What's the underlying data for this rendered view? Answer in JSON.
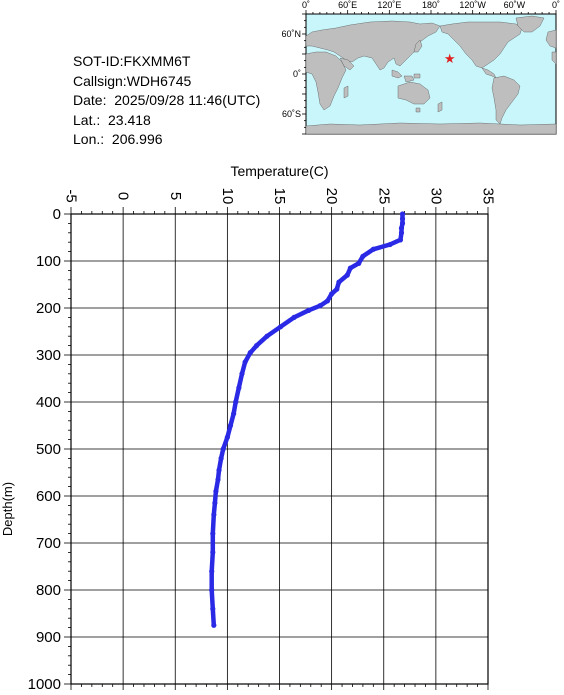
{
  "info": {
    "sot_id": "SOT-ID:FKXMM6T",
    "callsign": "Callsign:WDH6745",
    "date": "Date:  2025/09/28 11:46(UTC)",
    "lat": "Lat.:  23.418",
    "lon": "Lon.:  206.996"
  },
  "map": {
    "top_ticks": [
      "0˚",
      "60˚E",
      "120˚E",
      "180˚",
      "120˚W",
      "60˚W",
      "0˚"
    ],
    "left_ticks": [
      "60˚N",
      "0˚",
      "60˚S"
    ],
    "marker": {
      "lat": 23.418,
      "lon": 206.996,
      "symbol": "★",
      "color": "#e02020"
    },
    "ocean_color": "#c8f6fb",
    "land_color": "#bebebe"
  },
  "chart_data": {
    "type": "line",
    "title": "",
    "xlabel": "Temperature(C)",
    "ylabel": "Depth(m)",
    "xlim": [
      -5,
      35
    ],
    "ylim": [
      0,
      1000
    ],
    "y_inverted": true,
    "x_ticks": [
      "-5",
      "0",
      "5",
      "10",
      "15",
      "20",
      "25",
      "30",
      "35"
    ],
    "y_ticks": [
      "0",
      "100",
      "200",
      "300",
      "400",
      "500",
      "600",
      "700",
      "800",
      "900",
      "1000"
    ],
    "grid": true,
    "line_color": "#2a2ae6",
    "series": [
      {
        "x": [
          26.8,
          26.8,
          26.8,
          26.7,
          26.7,
          26.6,
          25.6,
          24.0,
          23.0,
          22.6,
          21.8,
          21.5,
          20.7,
          20.5,
          20.0,
          19.6,
          18.9,
          17.8,
          16.4,
          15.1,
          13.8,
          12.8,
          12.2,
          11.7,
          11.4,
          11.1,
          10.8,
          10.6,
          10.3,
          10.0,
          9.6,
          9.4,
          9.2,
          9.1,
          8.9,
          8.8,
          8.7,
          8.6,
          8.6,
          8.5,
          8.5,
          8.6,
          8.7
        ],
        "y": [
          0,
          10,
          20,
          30,
          40,
          55,
          65,
          75,
          90,
          105,
          115,
          130,
          145,
          160,
          170,
          185,
          195,
          205,
          220,
          240,
          260,
          280,
          295,
          315,
          340,
          370,
          400,
          425,
          450,
          475,
          500,
          520,
          545,
          565,
          590,
          615,
          640,
          680,
          720,
          760,
          800,
          840,
          875
        ]
      }
    ]
  }
}
